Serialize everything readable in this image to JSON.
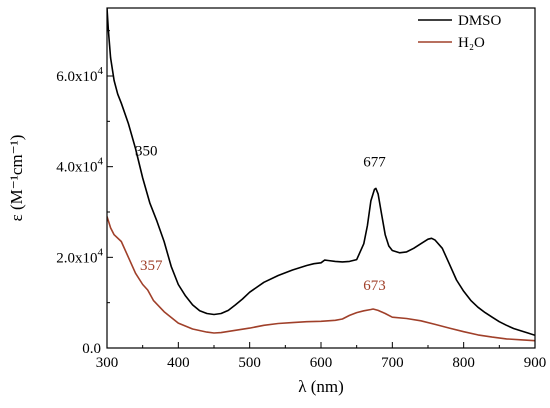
{
  "chart_data": {
    "type": "line",
    "xlabel": "λ (nm)",
    "ylabel": "ε (M⁻¹cm⁻¹)",
    "xlim": [
      300,
      900
    ],
    "ylim": [
      0,
      75000
    ],
    "x_ticks": [
      {
        "value": 300,
        "label": "300"
      },
      {
        "value": 400,
        "label": "400"
      },
      {
        "value": 500,
        "label": "500"
      },
      {
        "value": 600,
        "label": "600"
      },
      {
        "value": 700,
        "label": "700"
      },
      {
        "value": 800,
        "label": "800"
      },
      {
        "value": 900,
        "label": "900"
      }
    ],
    "y_ticks": [
      {
        "value": 0,
        "mant": "0.0",
        "exp": ""
      },
      {
        "value": 20000,
        "mant": "2.0x10",
        "exp": "4"
      },
      {
        "value": 40000,
        "mant": "4.0x10",
        "exp": "4"
      },
      {
        "value": 60000,
        "mant": "6.0x10",
        "exp": "4"
      }
    ],
    "grid": false,
    "legend_position": "top-right",
    "series": [
      {
        "name": "DMSO",
        "color": "#000000",
        "points": [
          [
            300,
            75000
          ],
          [
            302,
            70000
          ],
          [
            305,
            64000
          ],
          [
            310,
            59000
          ],
          [
            315,
            56000
          ],
          [
            320,
            54000
          ],
          [
            330,
            49500
          ],
          [
            340,
            44000
          ],
          [
            350,
            37500
          ],
          [
            360,
            32000
          ],
          [
            370,
            28000
          ],
          [
            380,
            23500
          ],
          [
            390,
            18000
          ],
          [
            400,
            14000
          ],
          [
            410,
            11500
          ],
          [
            420,
            9500
          ],
          [
            430,
            8200
          ],
          [
            440,
            7600
          ],
          [
            450,
            7400
          ],
          [
            460,
            7600
          ],
          [
            470,
            8300
          ],
          [
            480,
            9500
          ],
          [
            490,
            10800
          ],
          [
            500,
            12300
          ],
          [
            520,
            14500
          ],
          [
            540,
            16000
          ],
          [
            560,
            17200
          ],
          [
            580,
            18200
          ],
          [
            590,
            18600
          ],
          [
            600,
            18800
          ],
          [
            605,
            19400
          ],
          [
            610,
            19300
          ],
          [
            620,
            19100
          ],
          [
            630,
            19000
          ],
          [
            640,
            19100
          ],
          [
            650,
            19500
          ],
          [
            660,
            23000
          ],
          [
            665,
            27000
          ],
          [
            670,
            32500
          ],
          [
            675,
            35000
          ],
          [
            677,
            35200
          ],
          [
            680,
            34000
          ],
          [
            685,
            29500
          ],
          [
            690,
            25000
          ],
          [
            695,
            22500
          ],
          [
            700,
            21500
          ],
          [
            710,
            21000
          ],
          [
            720,
            21200
          ],
          [
            730,
            22000
          ],
          [
            740,
            23000
          ],
          [
            750,
            24000
          ],
          [
            755,
            24200
          ],
          [
            760,
            23800
          ],
          [
            770,
            22000
          ],
          [
            780,
            18500
          ],
          [
            790,
            15000
          ],
          [
            800,
            12500
          ],
          [
            810,
            10500
          ],
          [
            820,
            9000
          ],
          [
            830,
            7800
          ],
          [
            840,
            6800
          ],
          [
            850,
            5800
          ],
          [
            860,
            5000
          ],
          [
            870,
            4300
          ],
          [
            880,
            3800
          ],
          [
            890,
            3300
          ],
          [
            900,
            2800
          ]
        ]
      },
      {
        "name": "H₂O",
        "color": "#a0402a",
        "points": [
          [
            300,
            29000
          ],
          [
            305,
            26500
          ],
          [
            310,
            25000
          ],
          [
            320,
            23500
          ],
          [
            330,
            20000
          ],
          [
            340,
            16500
          ],
          [
            350,
            14000
          ],
          [
            357,
            12800
          ],
          [
            365,
            10500
          ],
          [
            380,
            8000
          ],
          [
            400,
            5500
          ],
          [
            420,
            4200
          ],
          [
            440,
            3500
          ],
          [
            450,
            3300
          ],
          [
            460,
            3400
          ],
          [
            480,
            3900
          ],
          [
            500,
            4400
          ],
          [
            520,
            5000
          ],
          [
            540,
            5400
          ],
          [
            560,
            5600
          ],
          [
            580,
            5800
          ],
          [
            600,
            5900
          ],
          [
            620,
            6100
          ],
          [
            630,
            6400
          ],
          [
            640,
            7200
          ],
          [
            650,
            7800
          ],
          [
            660,
            8200
          ],
          [
            670,
            8500
          ],
          [
            673,
            8600
          ],
          [
            680,
            8300
          ],
          [
            690,
            7600
          ],
          [
            700,
            6800
          ],
          [
            720,
            6500
          ],
          [
            740,
            6000
          ],
          [
            760,
            5200
          ],
          [
            780,
            4400
          ],
          [
            800,
            3600
          ],
          [
            820,
            2900
          ],
          [
            840,
            2400
          ],
          [
            860,
            2000
          ],
          [
            880,
            1800
          ],
          [
            900,
            1600
          ]
        ]
      }
    ],
    "annotations": [
      {
        "text": "350",
        "x": 355,
        "y": 42500,
        "color": "#000000"
      },
      {
        "text": "677",
        "x": 675,
        "y": 40000,
        "color": "#000000"
      },
      {
        "text": "357",
        "x": 362,
        "y": 17200,
        "color": "#a0402a"
      },
      {
        "text": "673",
        "x": 675,
        "y": 12800,
        "color": "#a0402a"
      }
    ]
  }
}
